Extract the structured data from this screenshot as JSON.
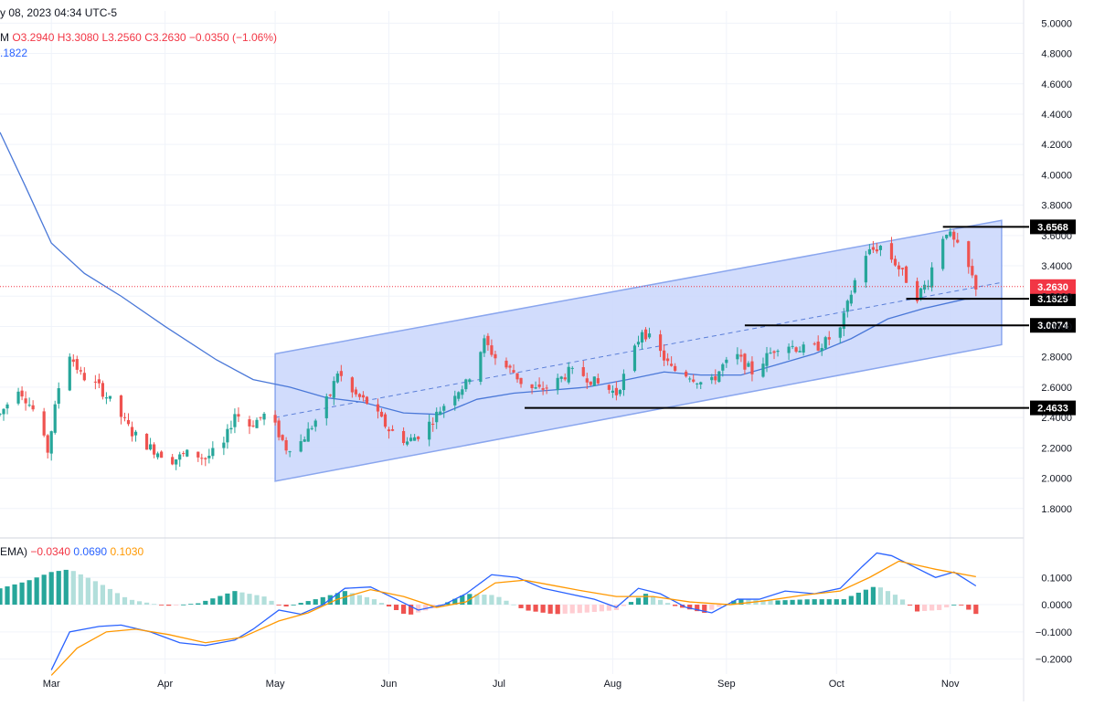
{
  "header": {
    "title": "y 08, 2023 04:34 UTC-5",
    "ohlc_prefix": "M",
    "open": "O3.2940",
    "high": "H3.3080",
    "low": "L3.2560",
    "close": "C3.2630",
    "change": "−0.0350 (−1.06%)",
    "ma_value": ".1822"
  },
  "macd_legend": {
    "prefix": "EMA)",
    "histogram": "−0.0340",
    "macd": "0.0690",
    "signal": "0.1030"
  },
  "colors": {
    "up": "#26a69a",
    "down": "#ef5350",
    "ma": "#4a78d8",
    "channel_fill": "#c9d6fb",
    "channel_line": "#8aa6ee",
    "macd": "#2962ff",
    "signal": "#ff9800",
    "last_price": "#f23645"
  },
  "chart_data": [
    {
      "type": "candlestick",
      "y_axis": {
        "range": [
          1.66,
          5.02
        ],
        "ticks": [
          "1.8000",
          "2.0000",
          "2.2000",
          "2.4000",
          "2.6000",
          "2.8000",
          "3.0000",
          "3.2000",
          "3.4000",
          "3.6000",
          "3.8000",
          "4.0000",
          "4.2000",
          "4.4000",
          "4.6000",
          "4.8000",
          "5.0000"
        ]
      },
      "x_axis": {
        "range": [
          "2023-02-15",
          "2023-11-21"
        ],
        "ticks": [
          {
            "label": "Mar",
            "date": "2023-03-01"
          },
          {
            "label": "Apr",
            "date": "2023-04-01"
          },
          {
            "label": "May",
            "date": "2023-05-01"
          },
          {
            "label": "Jun",
            "date": "2023-06-01"
          },
          {
            "label": "Jul",
            "date": "2023-07-01"
          },
          {
            "label": "Aug",
            "date": "2023-08-01"
          },
          {
            "label": "Sep",
            "date": "2023-09-01"
          },
          {
            "label": "Oct",
            "date": "2023-10-01"
          },
          {
            "label": "Nov",
            "date": "2023-11-01"
          }
        ]
      },
      "price_path": [
        [
          "2023-02-15",
          2.42
        ],
        [
          "2023-02-20",
          2.6
        ],
        [
          "2023-02-24",
          2.45
        ],
        [
          "2023-02-28",
          2.18
        ],
        [
          "2023-03-03",
          2.6
        ],
        [
          "2023-03-06",
          2.82
        ],
        [
          "2023-03-09",
          2.68
        ],
        [
          "2023-03-14",
          2.6
        ],
        [
          "2023-03-18",
          2.48
        ],
        [
          "2023-03-23",
          2.3
        ],
        [
          "2023-03-28",
          2.2
        ],
        [
          "2023-04-03",
          2.12
        ],
        [
          "2023-04-08",
          2.17
        ],
        [
          "2023-04-12",
          2.13
        ],
        [
          "2023-04-17",
          2.22
        ],
        [
          "2023-04-20",
          2.43
        ],
        [
          "2023-04-24",
          2.35
        ],
        [
          "2023-04-29",
          2.43
        ],
        [
          "2023-05-04",
          2.2
        ],
        [
          "2023-05-08",
          2.24
        ],
        [
          "2023-05-12",
          2.38
        ],
        [
          "2023-05-16",
          2.55
        ],
        [
          "2023-05-18",
          2.7
        ],
        [
          "2023-05-22",
          2.56
        ],
        [
          "2023-05-26",
          2.5
        ],
        [
          "2023-06-01",
          2.32
        ],
        [
          "2023-06-06",
          2.24
        ],
        [
          "2023-06-10",
          2.3
        ],
        [
          "2023-06-14",
          2.42
        ],
        [
          "2023-06-18",
          2.55
        ],
        [
          "2023-06-22",
          2.62
        ],
        [
          "2023-06-27",
          2.9
        ],
        [
          "2023-07-01",
          2.76
        ],
        [
          "2023-07-05",
          2.7
        ],
        [
          "2023-07-08",
          2.6
        ],
        [
          "2023-07-12",
          2.58
        ],
        [
          "2023-07-16",
          2.62
        ],
        [
          "2023-07-20",
          2.7
        ],
        [
          "2023-07-24",
          2.68
        ],
        [
          "2023-07-28",
          2.62
        ],
        [
          "2023-08-02",
          2.56
        ],
        [
          "2023-08-06",
          2.78
        ],
        [
          "2023-08-09",
          2.98
        ],
        [
          "2023-08-13",
          2.86
        ],
        [
          "2023-08-17",
          2.72
        ],
        [
          "2023-08-22",
          2.68
        ],
        [
          "2023-08-27",
          2.6
        ],
        [
          "2023-08-31",
          2.74
        ],
        [
          "2023-09-04",
          2.8
        ],
        [
          "2023-09-08",
          2.7
        ],
        [
          "2023-09-12",
          2.8
        ],
        [
          "2023-09-16",
          2.9
        ],
        [
          "2023-09-20",
          2.86
        ],
        [
          "2023-09-24",
          2.84
        ],
        [
          "2023-09-28",
          2.9
        ],
        [
          "2023-10-02",
          2.98
        ],
        [
          "2023-10-06",
          3.3
        ],
        [
          "2023-10-09",
          3.48
        ],
        [
          "2023-10-13",
          3.53
        ],
        [
          "2023-10-17",
          3.42
        ],
        [
          "2023-10-20",
          3.31
        ],
        [
          "2023-10-23",
          3.2
        ],
        [
          "2023-10-26",
          3.3
        ],
        [
          "2023-10-29",
          3.56
        ],
        [
          "2023-10-31",
          3.63
        ],
        [
          "2023-11-03",
          3.52
        ],
        [
          "2023-11-06",
          3.38
        ],
        [
          "2023-11-08",
          3.263
        ]
      ],
      "moving_average": [
        [
          "2023-02-15",
          4.28
        ],
        [
          "2023-02-22",
          3.92
        ],
        [
          "2023-03-01",
          3.55
        ],
        [
          "2023-03-10",
          3.35
        ],
        [
          "2023-03-20",
          3.2
        ],
        [
          "2023-04-01",
          3.0
        ],
        [
          "2023-04-15",
          2.78
        ],
        [
          "2023-04-25",
          2.65
        ],
        [
          "2023-05-05",
          2.6
        ],
        [
          "2023-05-15",
          2.53
        ],
        [
          "2023-05-25",
          2.5
        ],
        [
          "2023-06-05",
          2.43
        ],
        [
          "2023-06-15",
          2.42
        ],
        [
          "2023-06-25",
          2.52
        ],
        [
          "2023-07-05",
          2.56
        ],
        [
          "2023-07-15",
          2.58
        ],
        [
          "2023-07-25",
          2.6
        ],
        [
          "2023-08-05",
          2.65
        ],
        [
          "2023-08-15",
          2.7
        ],
        [
          "2023-08-25",
          2.68
        ],
        [
          "2023-09-05",
          2.68
        ],
        [
          "2023-09-15",
          2.75
        ],
        [
          "2023-09-25",
          2.82
        ],
        [
          "2023-10-05",
          2.92
        ],
        [
          "2023-10-15",
          3.05
        ],
        [
          "2023-10-25",
          3.12
        ],
        [
          "2023-11-05",
          3.18
        ],
        [
          "2023-11-08",
          3.182
        ]
      ],
      "regression_channel": {
        "start": "2023-05-01",
        "end": "2023-11-15",
        "upper": [
          2.82,
          3.7
        ],
        "middle": [
          2.4,
          3.29
        ],
        "lower": [
          1.98,
          2.88
        ]
      },
      "levels": [
        {
          "label": "3.6568",
          "value": 3.6568,
          "from": "2023-10-30"
        },
        {
          "label": "3.1829",
          "value": 3.1829,
          "from": "2023-10-20"
        },
        {
          "label": "3.0074",
          "value": 3.0074,
          "from": "2023-09-06"
        },
        {
          "label": "2.4633",
          "value": 2.4633,
          "from": "2023-07-08"
        }
      ],
      "last_price": {
        "label": "3.2630",
        "value": 3.263
      }
    },
    {
      "type": "macd",
      "y_axis": {
        "range": [
          -0.255,
          0.215
        ],
        "ticks": [
          "0.1000",
          "0.0000",
          "−0.1000",
          "−0.2000"
        ]
      },
      "macd_line": [
        [
          "2023-03-01",
          -0.24
        ],
        [
          "2023-03-06",
          -0.1
        ],
        [
          "2023-03-14",
          -0.08
        ],
        [
          "2023-03-20",
          -0.075
        ],
        [
          "2023-03-28",
          -0.1
        ],
        [
          "2023-04-05",
          -0.14
        ],
        [
          "2023-04-12",
          -0.15
        ],
        [
          "2023-04-20",
          -0.13
        ],
        [
          "2023-04-25",
          -0.09
        ],
        [
          "2023-05-02",
          -0.02
        ],
        [
          "2023-05-08",
          -0.035
        ],
        [
          "2023-05-14",
          0.0
        ],
        [
          "2023-05-20",
          0.06
        ],
        [
          "2023-05-27",
          0.065
        ],
        [
          "2023-06-03",
          0.02
        ],
        [
          "2023-06-09",
          -0.02
        ],
        [
          "2023-06-16",
          0.0
        ],
        [
          "2023-06-22",
          0.04
        ],
        [
          "2023-06-29",
          0.11
        ],
        [
          "2023-07-06",
          0.1
        ],
        [
          "2023-07-13",
          0.06
        ],
        [
          "2023-07-20",
          0.04
        ],
        [
          "2023-07-27",
          0.02
        ],
        [
          "2023-08-02",
          -0.01
        ],
        [
          "2023-08-08",
          0.06
        ],
        [
          "2023-08-14",
          0.04
        ],
        [
          "2023-08-21",
          -0.01
        ],
        [
          "2023-08-28",
          -0.03
        ],
        [
          "2023-09-04",
          0.02
        ],
        [
          "2023-09-10",
          0.02
        ],
        [
          "2023-09-17",
          0.05
        ],
        [
          "2023-09-25",
          0.04
        ],
        [
          "2023-10-02",
          0.06
        ],
        [
          "2023-10-08",
          0.14
        ],
        [
          "2023-10-12",
          0.19
        ],
        [
          "2023-10-16",
          0.18
        ],
        [
          "2023-10-22",
          0.14
        ],
        [
          "2023-10-28",
          0.1
        ],
        [
          "2023-11-02",
          0.12
        ],
        [
          "2023-11-08",
          0.069
        ]
      ],
      "signal_line": [
        [
          "2023-03-01",
          -0.26
        ],
        [
          "2023-03-08",
          -0.16
        ],
        [
          "2023-03-16",
          -0.1
        ],
        [
          "2023-03-24",
          -0.09
        ],
        [
          "2023-04-02",
          -0.11
        ],
        [
          "2023-04-12",
          -0.14
        ],
        [
          "2023-04-22",
          -0.12
        ],
        [
          "2023-05-02",
          -0.06
        ],
        [
          "2023-05-10",
          -0.03
        ],
        [
          "2023-05-18",
          0.02
        ],
        [
          "2023-05-27",
          0.055
        ],
        [
          "2023-06-05",
          0.03
        ],
        [
          "2023-06-14",
          -0.01
        ],
        [
          "2023-06-22",
          0.01
        ],
        [
          "2023-06-30",
          0.08
        ],
        [
          "2023-07-08",
          0.09
        ],
        [
          "2023-07-16",
          0.07
        ],
        [
          "2023-07-24",
          0.05
        ],
        [
          "2023-08-02",
          0.03
        ],
        [
          "2023-08-12",
          0.03
        ],
        [
          "2023-08-22",
          0.01
        ],
        [
          "2023-09-02",
          0.0
        ],
        [
          "2023-09-12",
          0.015
        ],
        [
          "2023-09-22",
          0.035
        ],
        [
          "2023-10-02",
          0.05
        ],
        [
          "2023-10-10",
          0.1
        ],
        [
          "2023-10-18",
          0.16
        ],
        [
          "2023-10-28",
          0.13
        ],
        [
          "2023-11-08",
          0.103
        ]
      ],
      "histogram": [
        [
          "2023-02-15",
          0.06
        ],
        [
          "2023-02-22",
          0.085
        ],
        [
          "2023-03-01",
          0.12
        ],
        [
          "2023-03-06",
          0.13
        ],
        [
          "2023-03-14",
          0.08
        ],
        [
          "2023-03-22",
          0.02
        ],
        [
          "2023-04-01",
          -0.005
        ],
        [
          "2023-04-10",
          0.005
        ],
        [
          "2023-04-20",
          0.05
        ],
        [
          "2023-04-28",
          0.03
        ],
        [
          "2023-05-03",
          -0.01
        ],
        [
          "2023-05-12",
          0.02
        ],
        [
          "2023-05-20",
          0.05
        ],
        [
          "2023-05-28",
          0.02
        ],
        [
          "2023-06-06",
          -0.04
        ],
        [
          "2023-06-14",
          -0.01
        ],
        [
          "2023-06-22",
          0.04
        ],
        [
          "2023-06-30",
          0.035
        ],
        [
          "2023-07-08",
          -0.02
        ],
        [
          "2023-07-16",
          -0.035
        ],
        [
          "2023-07-24",
          -0.03
        ],
        [
          "2023-08-02",
          -0.02
        ],
        [
          "2023-08-10",
          0.04
        ],
        [
          "2023-08-18",
          -0.005
        ],
        [
          "2023-08-26",
          -0.03
        ],
        [
          "2023-09-04",
          0.02
        ],
        [
          "2023-09-14",
          0.015
        ],
        [
          "2023-09-24",
          0.02
        ],
        [
          "2023-10-03",
          0.02
        ],
        [
          "2023-10-08",
          0.05
        ],
        [
          "2023-10-12",
          0.07
        ],
        [
          "2023-10-18",
          0.03
        ],
        [
          "2023-10-23",
          -0.025
        ],
        [
          "2023-10-29",
          -0.02
        ],
        [
          "2023-11-03",
          0.005
        ],
        [
          "2023-11-08",
          -0.034
        ]
      ]
    }
  ]
}
